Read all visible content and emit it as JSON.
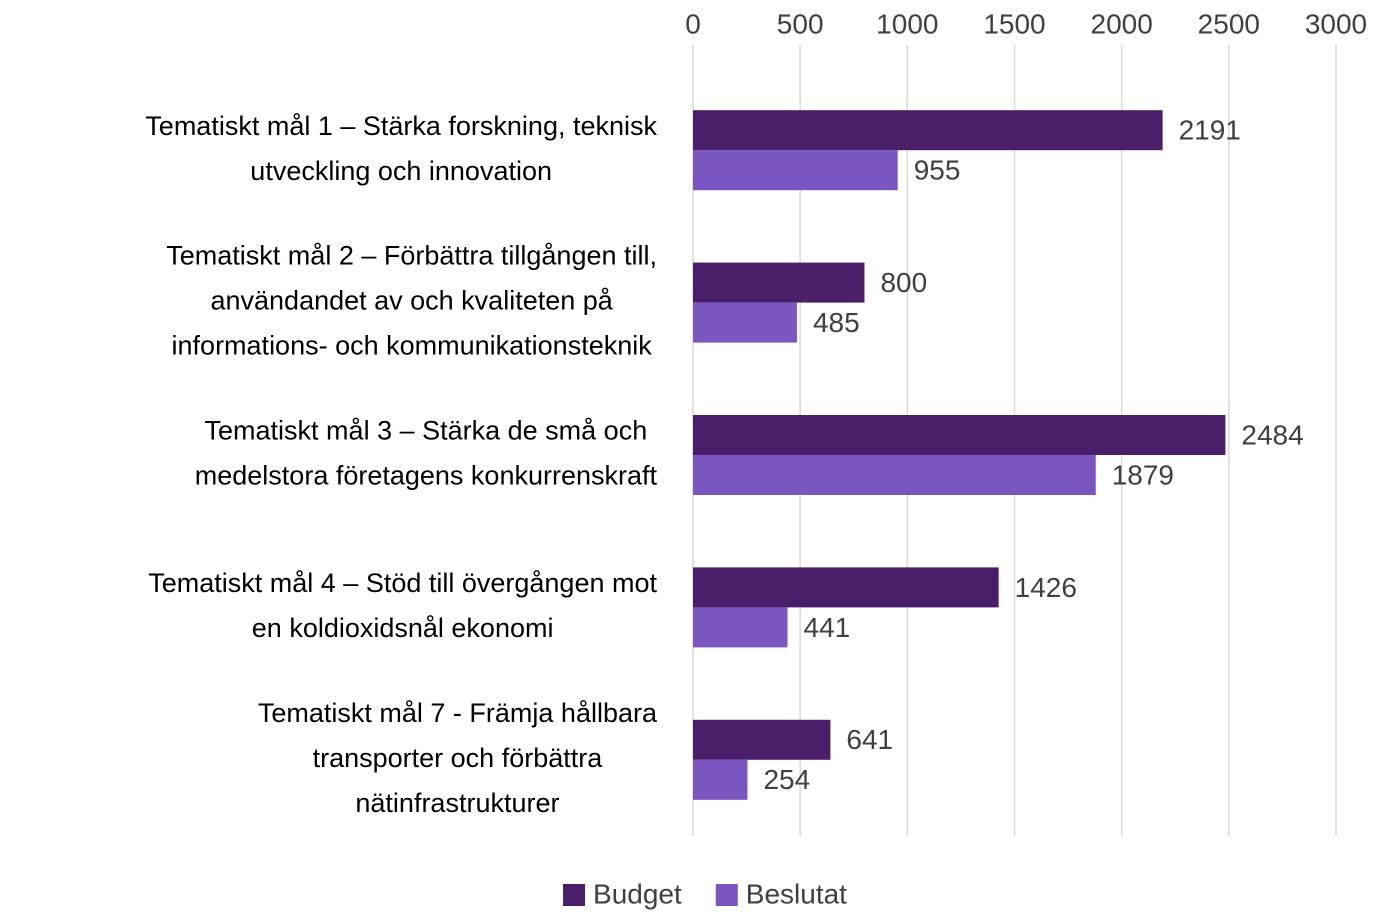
{
  "chart_data": {
    "type": "hbar",
    "categories": [
      [
        "Tematiskt mål 1 – Stärka forskning, teknisk",
        "utveckling och innovation"
      ],
      [
        "Tematiskt mål 2 – Förbättra tillgången till,",
        "användandet av och kvaliteten på",
        "informations- och kommunikationsteknik"
      ],
      [
        "Tematiskt mål 3 – Stärka de små och",
        "medelstora företagens konkurrenskraft"
      ],
      [
        "Tematiskt mål 4 – Stöd till övergången mot",
        "en koldioxidsnål ekonomi"
      ],
      [
        "Tematiskt mål 7 - Främja hållbara",
        "transporter och förbättra",
        "nätinfrastrukturer"
      ]
    ],
    "series": [
      {
        "name": "Budget",
        "color": "#4a1e68",
        "values": [
          2191,
          800,
          2484,
          1426,
          641
        ]
      },
      {
        "name": "Beslutat",
        "color": "#7b55c0",
        "values": [
          955,
          485,
          1879,
          441,
          254
        ]
      }
    ],
    "xlim": [
      0,
      3000
    ],
    "xticks": [
      0,
      500,
      1000,
      1500,
      2000,
      2500,
      3000
    ],
    "grid": true
  }
}
